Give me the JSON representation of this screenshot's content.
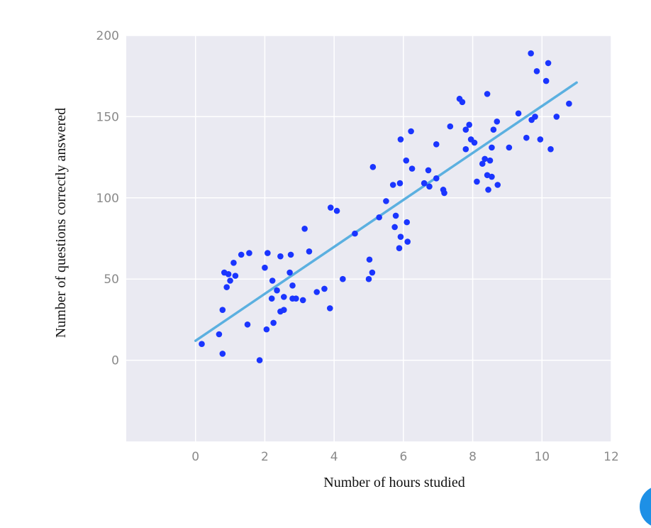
{
  "chart_data": {
    "type": "scatter",
    "title": "",
    "xlabel": "Number of hours studied",
    "ylabel": "Number of questions correctly answered",
    "xlim": [
      -2,
      12
    ],
    "ylim": [
      -50,
      200
    ],
    "xticks": [
      0,
      2,
      4,
      6,
      8,
      10,
      12
    ],
    "yticks": [
      0,
      50,
      100,
      150,
      200
    ],
    "grid": true,
    "legend": "none",
    "colors": {
      "plot_bg": "#eaeaf2",
      "grid": "#ffffff",
      "points": "#1a35ff",
      "fit_line": "#5bb0e0",
      "tick_text": "#8a8a8a",
      "corner_badge": "#1e90e6"
    },
    "points": [
      [
        0.18,
        10
      ],
      [
        0.68,
        16
      ],
      [
        0.78,
        31
      ],
      [
        0.78,
        4
      ],
      [
        0.83,
        54
      ],
      [
        0.9,
        45
      ],
      [
        0.95,
        53
      ],
      [
        1.0,
        49
      ],
      [
        1.15,
        52
      ],
      [
        1.1,
        60
      ],
      [
        1.32,
        65
      ],
      [
        1.55,
        66
      ],
      [
        1.5,
        22
      ],
      [
        1.85,
        0
      ],
      [
        2.0,
        57
      ],
      [
        2.05,
        19
      ],
      [
        2.08,
        66
      ],
      [
        2.2,
        38
      ],
      [
        2.22,
        49
      ],
      [
        2.25,
        23
      ],
      [
        2.35,
        43
      ],
      [
        2.45,
        64
      ],
      [
        2.45,
        30
      ],
      [
        2.55,
        31
      ],
      [
        2.55,
        39
      ],
      [
        2.72,
        54
      ],
      [
        2.75,
        65
      ],
      [
        2.8,
        46
      ],
      [
        2.8,
        38
      ],
      [
        2.9,
        38
      ],
      [
        3.1,
        37
      ],
      [
        3.15,
        81
      ],
      [
        3.28,
        67
      ],
      [
        3.5,
        42
      ],
      [
        3.72,
        44
      ],
      [
        3.88,
        32
      ],
      [
        3.9,
        94
      ],
      [
        4.08,
        92
      ],
      [
        4.25,
        50
      ],
      [
        4.6,
        78
      ],
      [
        5.0,
        50
      ],
      [
        5.02,
        62
      ],
      [
        5.1,
        54
      ],
      [
        5.12,
        119
      ],
      [
        5.3,
        88
      ],
      [
        5.5,
        98
      ],
      [
        5.7,
        108
      ],
      [
        5.75,
        82
      ],
      [
        5.78,
        89
      ],
      [
        5.88,
        69
      ],
      [
        5.9,
        109
      ],
      [
        5.92,
        76
      ],
      [
        5.92,
        136
      ],
      [
        6.08,
        123
      ],
      [
        6.1,
        85
      ],
      [
        6.12,
        73
      ],
      [
        6.22,
        141
      ],
      [
        6.25,
        118
      ],
      [
        6.6,
        109
      ],
      [
        6.72,
        117
      ],
      [
        6.75,
        107
      ],
      [
        6.95,
        112
      ],
      [
        6.95,
        133
      ],
      [
        7.15,
        105
      ],
      [
        7.18,
        103
      ],
      [
        7.35,
        144
      ],
      [
        7.62,
        161
      ],
      [
        7.7,
        159
      ],
      [
        7.8,
        130
      ],
      [
        7.8,
        142
      ],
      [
        7.9,
        145
      ],
      [
        7.95,
        136
      ],
      [
        8.05,
        134
      ],
      [
        8.12,
        110
      ],
      [
        8.28,
        121
      ],
      [
        8.35,
        124
      ],
      [
        8.42,
        114
      ],
      [
        8.42,
        164
      ],
      [
        8.45,
        105
      ],
      [
        8.5,
        123
      ],
      [
        8.55,
        113
      ],
      [
        8.55,
        131
      ],
      [
        8.6,
        142
      ],
      [
        8.7,
        147
      ],
      [
        8.72,
        108
      ],
      [
        9.05,
        131
      ],
      [
        9.32,
        152
      ],
      [
        9.55,
        137
      ],
      [
        9.68,
        189
      ],
      [
        9.7,
        148
      ],
      [
        9.8,
        150
      ],
      [
        9.85,
        178
      ],
      [
        9.95,
        136
      ],
      [
        10.12,
        172
      ],
      [
        10.18,
        183
      ],
      [
        10.25,
        130
      ],
      [
        10.42,
        150
      ],
      [
        10.78,
        158
      ]
    ],
    "fit_line": {
      "x": [
        0,
        11
      ],
      "y": [
        12,
        171
      ]
    }
  }
}
